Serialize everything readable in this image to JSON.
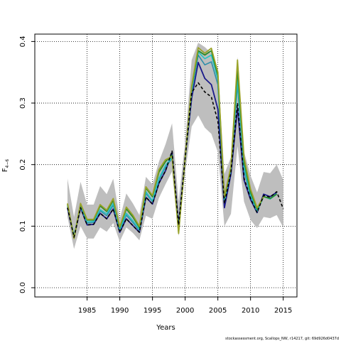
{
  "chart_data": {
    "type": "line",
    "title": "",
    "xlabel": "Years",
    "ylabel_main": "F",
    "ylabel_sub": "4−6",
    "xlim": [
      1977,
      2017.1
    ],
    "ylim": [
      -0.015,
      0.412
    ],
    "x_ticks": [
      1985,
      1990,
      1995,
      2000,
      2005,
      2010,
      2015
    ],
    "y_ticks": [
      0.0,
      0.1,
      0.2,
      0.3,
      0.4
    ],
    "y_tick_labels": [
      "0.0",
      "0.1",
      "0.2",
      "0.3",
      "0.4"
    ],
    "grid": "dotted",
    "band": {
      "color": "#bebebe",
      "x": [
        1982,
        1983,
        1984,
        1985,
        1986,
        1987,
        1988,
        1989,
        1990,
        1991,
        1992,
        1993,
        1994,
        1995,
        1996,
        1997,
        1998,
        1999,
        2000,
        2001,
        2002,
        2003,
        2004,
        2005,
        2006,
        2007,
        2008,
        2009,
        2010,
        2011,
        2012,
        2013,
        2014,
        2015
      ],
      "upper": [
        0.177,
        0.115,
        0.172,
        0.135,
        0.135,
        0.165,
        0.152,
        0.177,
        0.112,
        0.153,
        0.137,
        0.118,
        0.18,
        0.168,
        0.205,
        0.233,
        0.267,
        0.14,
        0.237,
        0.37,
        0.398,
        0.391,
        0.381,
        0.355,
        0.185,
        0.212,
        0.375,
        0.221,
        0.182,
        0.155,
        0.188,
        0.186,
        0.2,
        0.175
      ],
      "lower": [
        0.115,
        0.063,
        0.1,
        0.08,
        0.08,
        0.098,
        0.091,
        0.105,
        0.075,
        0.098,
        0.089,
        0.077,
        0.117,
        0.112,
        0.146,
        0.168,
        0.189,
        0.084,
        0.188,
        0.262,
        0.28,
        0.26,
        0.25,
        0.22,
        0.1,
        0.12,
        0.23,
        0.14,
        0.11,
        0.097,
        0.115,
        0.113,
        0.118,
        0.098
      ]
    },
    "series": [
      {
        "color": "#1a1a8a",
        "width": 1.8,
        "dash": "",
        "x": [
          1982,
          1983,
          1984,
          1985,
          1986,
          1987,
          1988,
          1989,
          1990,
          1991,
          1992,
          1993,
          1994,
          1995,
          1996,
          1997,
          1998,
          1999,
          2000,
          2001,
          2002,
          2003,
          2004,
          2005,
          2006,
          2007,
          2008,
          2009,
          2010,
          2011,
          2012,
          2013,
          2014
        ],
        "y": [
          0.13,
          0.082,
          0.13,
          0.102,
          0.103,
          0.121,
          0.112,
          0.128,
          0.09,
          0.112,
          0.101,
          0.09,
          0.147,
          0.136,
          0.17,
          0.19,
          0.22,
          0.102,
          0.21,
          0.308,
          0.366,
          0.34,
          0.33,
          0.29,
          0.13,
          0.185,
          0.292,
          0.175,
          0.143,
          0.122,
          0.152,
          0.148,
          0.155
        ]
      },
      {
        "color": "#2f8eaa",
        "width": 1.6,
        "dash": "",
        "x": [
          1982,
          1983,
          1984,
          1985,
          1986,
          1987,
          1988,
          1989,
          1990,
          1991,
          1992,
          1993,
          1994,
          1995,
          1996,
          1997,
          1998,
          1999,
          2000,
          2001,
          2002,
          2003,
          2004,
          2005,
          2006,
          2007,
          2008,
          2009,
          2010,
          2011,
          2012,
          2013,
          2014
        ],
        "y": [
          0.133,
          0.083,
          0.132,
          0.105,
          0.106,
          0.125,
          0.117,
          0.134,
          0.093,
          0.118,
          0.106,
          0.093,
          0.153,
          0.14,
          0.175,
          0.196,
          0.21,
          0.097,
          0.21,
          0.318,
          0.378,
          0.362,
          0.367,
          0.33,
          0.14,
          0.192,
          0.33,
          0.19,
          0.148,
          0.124,
          0.148,
          0.145,
          0.153
        ]
      },
      {
        "color": "#26c4c4",
        "width": 1.6,
        "dash": "",
        "x": [
          1982,
          1983,
          1984,
          1985,
          1986,
          1987,
          1988,
          1989,
          1990,
          1991,
          1992,
          1993,
          1994,
          1995,
          1996,
          1997,
          1998,
          1999,
          2000,
          2001,
          2002,
          2003,
          2004,
          2005,
          2006,
          2007,
          2008,
          2009,
          2010,
          2011,
          2012,
          2013,
          2014
        ],
        "y": [
          0.134,
          0.084,
          0.134,
          0.107,
          0.108,
          0.127,
          0.12,
          0.137,
          0.095,
          0.121,
          0.109,
          0.095,
          0.156,
          0.141,
          0.178,
          0.199,
          0.212,
          0.094,
          0.208,
          0.322,
          0.383,
          0.372,
          0.378,
          0.338,
          0.143,
          0.194,
          0.338,
          0.196,
          0.15,
          0.125,
          0.148,
          0.144,
          0.152
        ]
      },
      {
        "color": "#2a8a2a",
        "width": 1.8,
        "dash": "",
        "x": [
          1982,
          1983,
          1984,
          1985,
          1986,
          1987,
          1988,
          1989,
          1990,
          1991,
          1992,
          1993,
          1994,
          1995,
          1996,
          1997,
          1998,
          1999,
          2000,
          2001,
          2002,
          2003,
          2004,
          2005,
          2006,
          2007,
          2008,
          2009,
          2010,
          2011,
          2012,
          2013,
          2014
        ],
        "y": [
          0.136,
          0.081,
          0.136,
          0.11,
          0.11,
          0.133,
          0.124,
          0.142,
          0.098,
          0.128,
          0.115,
          0.098,
          0.162,
          0.148,
          0.188,
          0.205,
          0.215,
          0.09,
          0.21,
          0.326,
          0.385,
          0.378,
          0.385,
          0.345,
          0.146,
          0.196,
          0.355,
          0.205,
          0.155,
          0.128,
          0.148,
          0.145,
          0.152
        ]
      },
      {
        "color": "#9aa32a",
        "width": 1.8,
        "dash": "",
        "x": [
          1982,
          1983,
          1984,
          1985,
          1986,
          1987,
          1988,
          1989,
          1990,
          1991,
          1992,
          1993,
          1994,
          1995,
          1996,
          1997,
          1998,
          1999,
          2000,
          2001,
          2002,
          2003,
          2004,
          2005,
          2006,
          2007,
          2008,
          2009,
          2010,
          2011,
          2012
        ],
        "y": [
          0.137,
          0.08,
          0.137,
          0.111,
          0.111,
          0.135,
          0.126,
          0.145,
          0.099,
          0.131,
          0.118,
          0.1,
          0.164,
          0.15,
          0.192,
          0.208,
          0.213,
          0.088,
          0.21,
          0.328,
          0.39,
          0.381,
          0.389,
          0.35,
          0.148,
          0.197,
          0.37,
          0.212,
          0.16,
          0.13,
          0.148
        ]
      },
      {
        "color": "#000000",
        "width": 1.6,
        "dash": "4,3",
        "x": [
          1982,
          1983,
          1984,
          1985,
          1986,
          1987,
          1988,
          1989,
          1990,
          1991,
          1992,
          1993,
          1994,
          1995,
          1996,
          1997,
          1998,
          1999,
          2000,
          2001,
          2002,
          2003,
          2004,
          2005,
          2006,
          2007,
          2008,
          2009,
          2010,
          2011,
          2012,
          2013,
          2014,
          2015
        ],
        "y": [
          0.13,
          0.082,
          0.13,
          0.102,
          0.103,
          0.121,
          0.112,
          0.128,
          0.09,
          0.112,
          0.101,
          0.09,
          0.147,
          0.136,
          0.17,
          0.19,
          0.222,
          0.102,
          0.21,
          0.317,
          0.333,
          0.318,
          0.31,
          0.27,
          0.137,
          0.188,
          0.3,
          0.178,
          0.145,
          0.122,
          0.15,
          0.147,
          0.156,
          0.128
        ]
      }
    ]
  },
  "footer_text": "stockassessment.org, Scallops_NW, r14217, git: 69d926d0437d"
}
